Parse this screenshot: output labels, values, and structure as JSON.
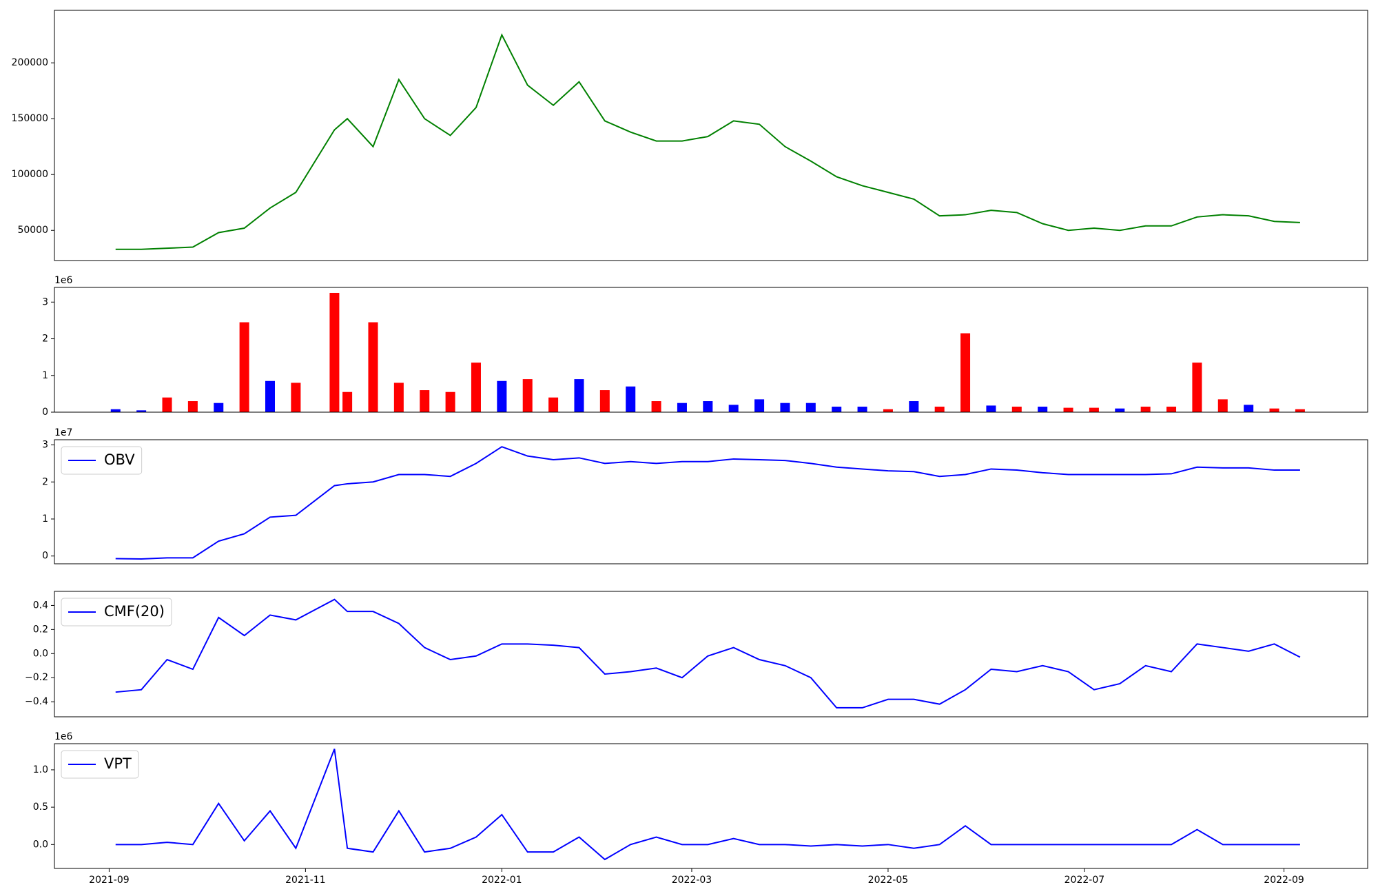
{
  "chart_data": [
    {
      "type": "line",
      "color": "#008000",
      "x": [
        "2021-09-03",
        "2021-09-11",
        "2021-09-19",
        "2021-09-27",
        "2021-10-05",
        "2021-10-13",
        "2021-10-21",
        "2021-10-29",
        "2021-11-10",
        "2021-11-14",
        "2021-11-22",
        "2021-11-30",
        "2021-12-08",
        "2021-12-16",
        "2021-12-24",
        "2022-01-01",
        "2022-01-09",
        "2022-01-17",
        "2022-01-25",
        "2022-02-02",
        "2022-02-10",
        "2022-02-18",
        "2022-02-26",
        "2022-03-06",
        "2022-03-14",
        "2022-03-22",
        "2022-03-30",
        "2022-04-07",
        "2022-04-15",
        "2022-04-23",
        "2022-05-01",
        "2022-05-09",
        "2022-05-17",
        "2022-05-25",
        "2022-06-02",
        "2022-06-10",
        "2022-06-18",
        "2022-06-26",
        "2022-07-04",
        "2022-07-12",
        "2022-07-20",
        "2022-07-28",
        "2022-08-05",
        "2022-08-13",
        "2022-08-21",
        "2022-08-29",
        "2022-09-06"
      ],
      "values": [
        33000,
        33000,
        34000,
        35000,
        48000,
        52000,
        70000,
        84000,
        140000,
        150000,
        125000,
        185000,
        150000,
        135000,
        160000,
        225000,
        180000,
        162000,
        183000,
        148000,
        138000,
        130000,
        130000,
        134000,
        148000,
        145000,
        125000,
        112000,
        98000,
        90000,
        84000,
        78000,
        63000,
        64000,
        68000,
        66000,
        56000,
        50000,
        52000,
        50000,
        54000,
        54000,
        62000,
        64000,
        63000,
        58000,
        57000
      ],
      "xlim": [
        "2021-08-15",
        "2022-09-27"
      ],
      "ylim": [
        23000,
        247000
      ],
      "yticks": [
        50000,
        100000,
        150000,
        200000
      ]
    },
    {
      "type": "bar",
      "offset_label": "1e6",
      "x": [
        "2021-09-03",
        "2021-09-11",
        "2021-09-19",
        "2021-09-27",
        "2021-10-05",
        "2021-10-13",
        "2021-10-21",
        "2021-10-29",
        "2021-11-10",
        "2021-11-14",
        "2021-11-22",
        "2021-11-30",
        "2021-12-08",
        "2021-12-16",
        "2021-12-24",
        "2022-01-01",
        "2022-01-09",
        "2022-01-17",
        "2022-01-25",
        "2022-02-02",
        "2022-02-10",
        "2022-02-18",
        "2022-02-26",
        "2022-03-06",
        "2022-03-14",
        "2022-03-22",
        "2022-03-30",
        "2022-04-07",
        "2022-04-15",
        "2022-04-23",
        "2022-05-01",
        "2022-05-09",
        "2022-05-17",
        "2022-05-25",
        "2022-06-02",
        "2022-06-10",
        "2022-06-18",
        "2022-06-26",
        "2022-07-04",
        "2022-07-12",
        "2022-07-20",
        "2022-07-28",
        "2022-08-05",
        "2022-08-13",
        "2022-08-21",
        "2022-08-29",
        "2022-09-06"
      ],
      "values": [
        0.08,
        0.05,
        0.4,
        0.3,
        0.25,
        2.45,
        0.85,
        0.8,
        3.25,
        0.55,
        2.45,
        0.8,
        0.6,
        0.55,
        1.35,
        0.85,
        0.9,
        0.4,
        0.9,
        0.6,
        0.7,
        0.3,
        0.25,
        0.3,
        0.2,
        0.35,
        0.25,
        0.25,
        0.15,
        0.15,
        0.08,
        0.3,
        0.15,
        2.15,
        0.18,
        0.15,
        0.15,
        0.12,
        0.12,
        0.1,
        0.15,
        0.15,
        1.35,
        0.35,
        0.2,
        0.1,
        0.08
      ],
      "bar_colors": [
        "blue",
        "blue",
        "red",
        "red",
        "blue",
        "red",
        "blue",
        "red",
        "red",
        "red",
        "red",
        "red",
        "red",
        "red",
        "red",
        "blue",
        "red",
        "red",
        "blue",
        "red",
        "blue",
        "red",
        "blue",
        "blue",
        "blue",
        "blue",
        "blue",
        "blue",
        "blue",
        "blue",
        "red",
        "blue",
        "red",
        "red",
        "blue",
        "red",
        "blue",
        "red",
        "red",
        "blue",
        "red",
        "red",
        "red",
        "red",
        "blue",
        "red",
        "red"
      ],
      "xlim": [
        "2021-08-15",
        "2022-09-27"
      ],
      "ylim": [
        0,
        3.4
      ],
      "yticks": [
        0,
        1,
        2,
        3
      ]
    },
    {
      "type": "line",
      "offset_label": "1e7",
      "legend": "upper left",
      "x": [
        "2021-09-03",
        "2021-09-11",
        "2021-09-19",
        "2021-09-27",
        "2021-10-05",
        "2021-10-13",
        "2021-10-21",
        "2021-10-29",
        "2021-11-10",
        "2021-11-14",
        "2021-11-22",
        "2021-11-30",
        "2021-12-08",
        "2021-12-16",
        "2021-12-24",
        "2022-01-01",
        "2022-01-09",
        "2022-01-17",
        "2022-01-25",
        "2022-02-02",
        "2022-02-10",
        "2022-02-18",
        "2022-02-26",
        "2022-03-06",
        "2022-03-14",
        "2022-03-22",
        "2022-03-30",
        "2022-04-07",
        "2022-04-15",
        "2022-04-23",
        "2022-05-01",
        "2022-05-09",
        "2022-05-17",
        "2022-05-25",
        "2022-06-02",
        "2022-06-10",
        "2022-06-18",
        "2022-06-26",
        "2022-07-04",
        "2022-07-12",
        "2022-07-20",
        "2022-07-28",
        "2022-08-05",
        "2022-08-13",
        "2022-08-21",
        "2022-08-29",
        "2022-09-06"
      ],
      "series": [
        {
          "name": "OBV",
          "color": "blue",
          "values": [
            -0.07,
            -0.08,
            -0.05,
            -0.05,
            0.4,
            0.6,
            1.05,
            1.1,
            1.9,
            1.95,
            2.0,
            2.2,
            2.2,
            2.15,
            2.5,
            2.95,
            2.7,
            2.6,
            2.65,
            2.5,
            2.55,
            2.5,
            2.55,
            2.55,
            2.62,
            2.6,
            2.58,
            2.5,
            2.4,
            2.35,
            2.3,
            2.28,
            2.15,
            2.2,
            2.35,
            2.32,
            2.25,
            2.2,
            2.2,
            2.2,
            2.2,
            2.22,
            2.4,
            2.38,
            2.38,
            2.32,
            2.32
          ]
        }
      ],
      "xlim": [
        "2021-08-15",
        "2022-09-27"
      ],
      "ylim": [
        -0.21,
        3.14
      ],
      "yticks": [
        0,
        1,
        2,
        3
      ]
    },
    {
      "type": "line",
      "legend": "upper left",
      "x": [
        "2021-09-03",
        "2021-09-11",
        "2021-09-19",
        "2021-09-27",
        "2021-10-05",
        "2021-10-13",
        "2021-10-21",
        "2021-10-29",
        "2021-11-10",
        "2021-11-14",
        "2021-11-22",
        "2021-11-30",
        "2021-12-08",
        "2021-12-16",
        "2021-12-24",
        "2022-01-01",
        "2022-01-09",
        "2022-01-17",
        "2022-01-25",
        "2022-02-02",
        "2022-02-10",
        "2022-02-18",
        "2022-02-26",
        "2022-03-06",
        "2022-03-14",
        "2022-03-22",
        "2022-03-30",
        "2022-04-07",
        "2022-04-15",
        "2022-04-23",
        "2022-05-01",
        "2022-05-09",
        "2022-05-17",
        "2022-05-25",
        "2022-06-02",
        "2022-06-10",
        "2022-06-18",
        "2022-06-26",
        "2022-07-04",
        "2022-07-12",
        "2022-07-20",
        "2022-07-28",
        "2022-08-05",
        "2022-08-13",
        "2022-08-21",
        "2022-08-29",
        "2022-09-06"
      ],
      "series": [
        {
          "name": "CMF(20)",
          "color": "blue",
          "values": [
            -0.32,
            -0.3,
            -0.05,
            -0.13,
            0.3,
            0.15,
            0.32,
            0.28,
            0.45,
            0.35,
            0.35,
            0.25,
            0.05,
            -0.05,
            -0.02,
            0.08,
            0.08,
            0.07,
            0.05,
            -0.17,
            -0.15,
            -0.12,
            -0.2,
            -0.02,
            0.05,
            -0.05,
            -0.1,
            -0.2,
            -0.45,
            -0.45,
            -0.38,
            -0.38,
            -0.42,
            -0.3,
            -0.13,
            -0.15,
            -0.1,
            -0.15,
            -0.3,
            -0.25,
            -0.1,
            -0.15,
            0.08,
            0.05,
            0.02,
            0.08,
            -0.03
          ]
        }
      ],
      "xlim": [
        "2021-08-15",
        "2022-09-27"
      ],
      "ylim": [
        -0.525,
        0.517
      ],
      "yticks": [
        {
          "value": -0.4,
          "label": "−0.4"
        },
        {
          "value": -0.2,
          "label": "−0.2"
        },
        {
          "value": 0,
          "label": "0.0"
        },
        0.2,
        0.4
      ]
    },
    {
      "type": "line",
      "offset_label": "1e6",
      "legend": "upper left",
      "x": [
        "2021-09-03",
        "2021-09-11",
        "2021-09-19",
        "2021-09-27",
        "2021-10-05",
        "2021-10-13",
        "2021-10-21",
        "2021-10-29",
        "2021-11-10",
        "2021-11-14",
        "2021-11-22",
        "2021-11-30",
        "2021-12-08",
        "2021-12-16",
        "2021-12-24",
        "2022-01-01",
        "2022-01-09",
        "2022-01-17",
        "2022-01-25",
        "2022-02-02",
        "2022-02-10",
        "2022-02-18",
        "2022-02-26",
        "2022-03-06",
        "2022-03-14",
        "2022-03-22",
        "2022-03-30",
        "2022-04-07",
        "2022-04-15",
        "2022-04-23",
        "2022-05-01",
        "2022-05-09",
        "2022-05-17",
        "2022-05-25",
        "2022-06-02",
        "2022-06-10",
        "2022-06-18",
        "2022-06-26",
        "2022-07-04",
        "2022-07-12",
        "2022-07-20",
        "2022-07-28",
        "2022-08-05",
        "2022-08-13",
        "2022-08-21",
        "2022-08-29",
        "2022-09-06"
      ],
      "series": [
        {
          "name": "VPT",
          "color": "blue",
          "values": [
            0,
            0,
            0.03,
            0,
            0.55,
            0.05,
            0.45,
            -0.05,
            1.28,
            -0.05,
            -0.1,
            0.45,
            -0.1,
            -0.05,
            0.1,
            0.4,
            -0.1,
            -0.1,
            0.1,
            -0.2,
            0,
            0.1,
            0,
            0,
            0.08,
            0,
            0,
            -0.02,
            0,
            -0.02,
            0,
            -0.05,
            0,
            0.25,
            0,
            0,
            0,
            0,
            0,
            0,
            0,
            0,
            0.2,
            0,
            0,
            0,
            0
          ]
        }
      ],
      "xlim": [
        "2021-08-15",
        "2022-09-27"
      ],
      "ylim": [
        -0.32,
        1.35
      ],
      "yticks": [
        {
          "value": 0,
          "label": "0.0"
        },
        {
          "value": 0.5,
          "label": "0.5"
        },
        {
          "value": 1,
          "label": "1.0"
        }
      ],
      "xticks": [
        {
          "value": "2021-09-01",
          "label": "2021-09"
        },
        {
          "value": "2021-11-01",
          "label": "2021-11"
        },
        {
          "value": "2022-01-01",
          "label": "2022-01"
        },
        {
          "value": "2022-03-01",
          "label": "2022-03"
        },
        {
          "value": "2022-05-01",
          "label": "2022-05"
        },
        {
          "value": "2022-07-01",
          "label": "2022-07"
        },
        {
          "value": "2022-09-01",
          "label": "2022-09"
        }
      ]
    }
  ]
}
